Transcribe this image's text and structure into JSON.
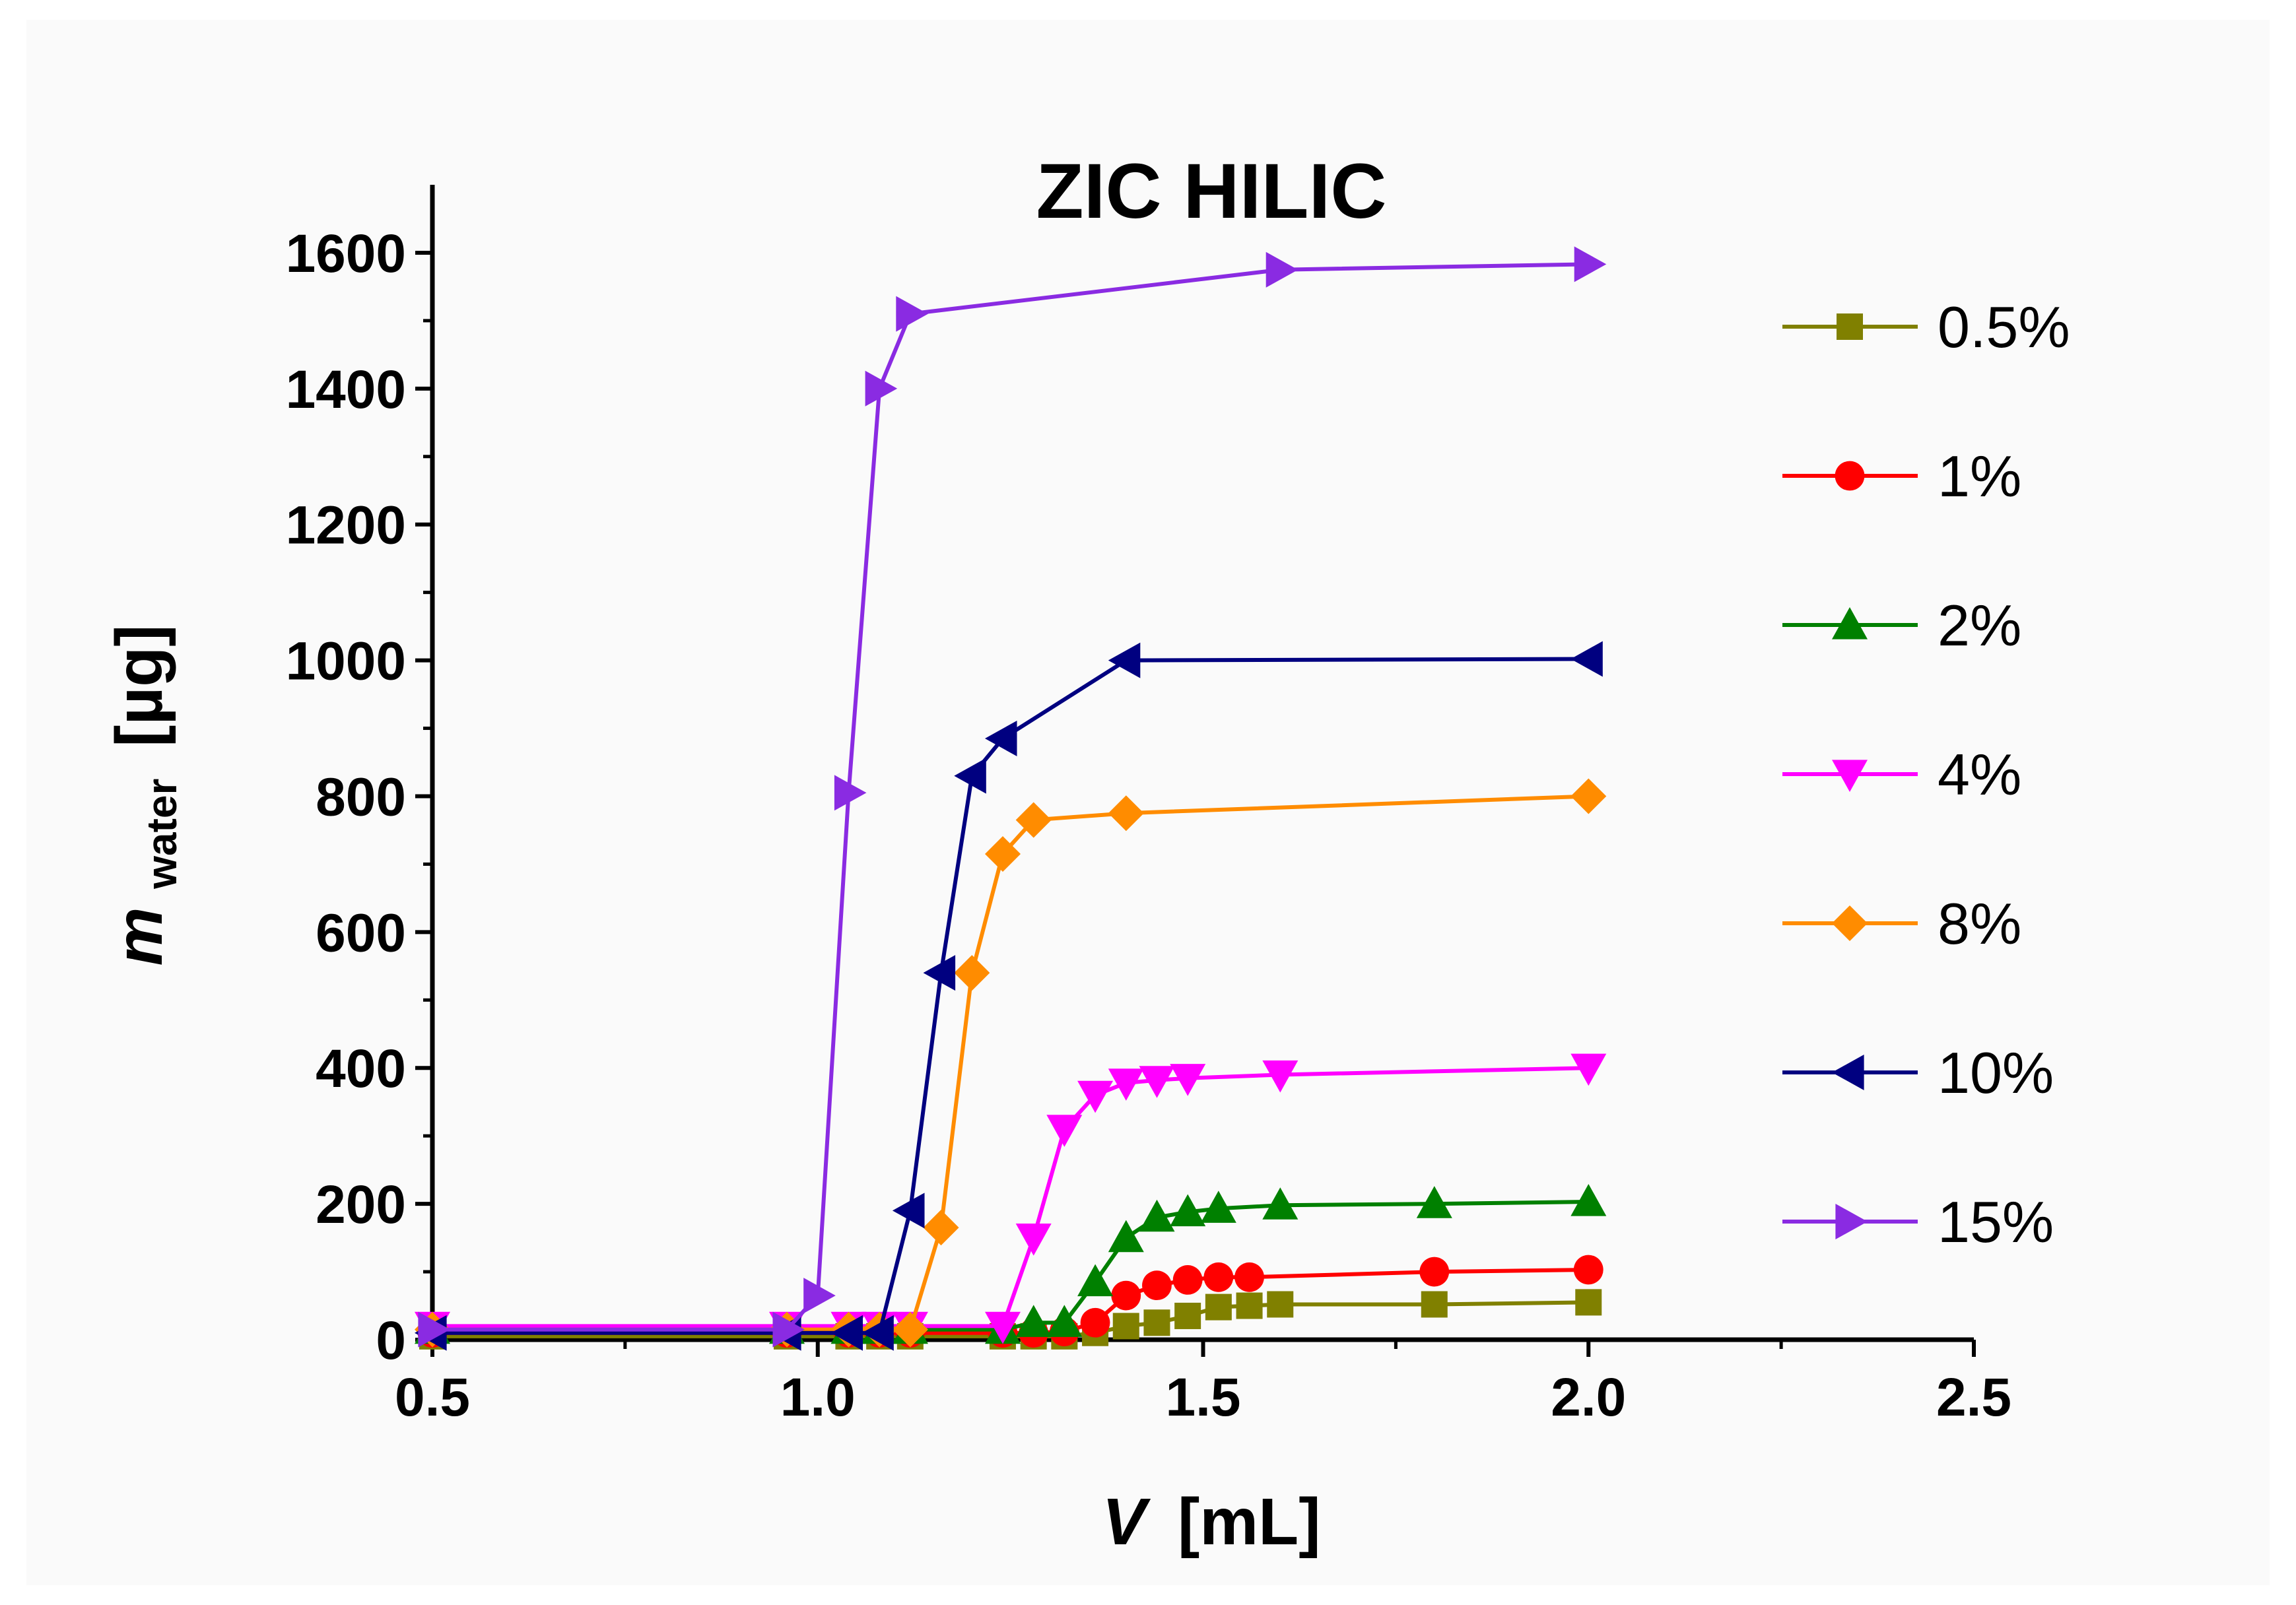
{
  "chart_data": {
    "type": "line",
    "title": "ZIC HILIC",
    "xlabel": {
      "var": "V",
      "unit": "[mL]"
    },
    "ylabel": {
      "var": "m",
      "sub": "water",
      "unit": "[µg]"
    },
    "xlim": [
      0.5,
      2.5
    ],
    "ylim": [
      0,
      1700
    ],
    "xticks": [
      "0.5",
      "1.0",
      "1.5",
      "2.0",
      "2.5"
    ],
    "xtick_values": [
      0.5,
      1.0,
      1.5,
      2.0,
      2.5
    ],
    "yticks": [
      "0",
      "200",
      "400",
      "600",
      "800",
      "1000",
      "1200",
      "1400",
      "1600"
    ],
    "ytick_values": [
      0,
      200,
      400,
      600,
      800,
      1000,
      1200,
      1400,
      1600
    ],
    "grid": false,
    "legend_position": "right",
    "series": [
      {
        "name": "0.5%",
        "color": "#808000",
        "marker": "square",
        "x": [
          0.5,
          0.96,
          1.04,
          1.08,
          1.12,
          1.24,
          1.28,
          1.32,
          1.36,
          1.4,
          1.44,
          1.48,
          1.52,
          1.56,
          1.6,
          1.8,
          2.0
        ],
        "y": [
          5,
          5,
          5,
          5,
          5,
          5,
          5,
          5,
          10,
          20,
          25,
          35,
          48,
          50,
          52,
          52,
          55
        ]
      },
      {
        "name": "1%",
        "color": "#ff0000",
        "marker": "circle",
        "x": [
          0.5,
          0.96,
          1.04,
          1.08,
          1.12,
          1.24,
          1.28,
          1.32,
          1.36,
          1.4,
          1.44,
          1.48,
          1.52,
          1.56,
          1.8,
          2.0
        ],
        "y": [
          10,
          10,
          10,
          10,
          10,
          10,
          10,
          12,
          25,
          65,
          80,
          88,
          92,
          92,
          100,
          103
        ]
      },
      {
        "name": "2%",
        "color": "#008000",
        "marker": "triangle-up",
        "x": [
          0.5,
          0.96,
          1.04,
          1.08,
          1.12,
          1.24,
          1.28,
          1.32,
          1.36,
          1.4,
          1.44,
          1.48,
          1.52,
          1.6,
          1.8,
          2.0
        ],
        "y": [
          15,
          15,
          15,
          15,
          15,
          15,
          25,
          25,
          85,
          150,
          180,
          188,
          193,
          198,
          200,
          203
        ]
      },
      {
        "name": "4%",
        "color": "#ff00ff",
        "marker": "triangle-down",
        "x": [
          0.5,
          0.96,
          1.04,
          1.08,
          1.12,
          1.24,
          1.28,
          1.32,
          1.36,
          1.4,
          1.44,
          1.48,
          1.6,
          2.0
        ],
        "y": [
          20,
          20,
          20,
          20,
          20,
          20,
          150,
          310,
          360,
          378,
          382,
          385,
          390,
          400
        ]
      },
      {
        "name": "8%",
        "color": "#ff8c00",
        "marker": "diamond",
        "x": [
          0.5,
          0.96,
          1.04,
          1.08,
          1.12,
          1.16,
          1.2,
          1.24,
          1.28,
          1.4,
          2.0
        ],
        "y": [
          15,
          15,
          15,
          15,
          15,
          165,
          540,
          715,
          765,
          775,
          800
        ]
      },
      {
        "name": "10%",
        "color": "#000080",
        "marker": "triangle-left",
        "x": [
          0.5,
          0.96,
          1.04,
          1.08,
          1.12,
          1.16,
          1.2,
          1.24,
          1.4,
          2.0
        ],
        "y": [
          10,
          10,
          10,
          10,
          190,
          540,
          830,
          885,
          1000,
          1002
        ]
      },
      {
        "name": "15%",
        "color": "#8a2be2",
        "marker": "triangle-right",
        "x": [
          0.5,
          0.96,
          1.0,
          1.04,
          1.08,
          1.12,
          1.6,
          2.0
        ],
        "y": [
          15,
          15,
          65,
          805,
          1400,
          1510,
          1575,
          1583
        ]
      }
    ]
  }
}
